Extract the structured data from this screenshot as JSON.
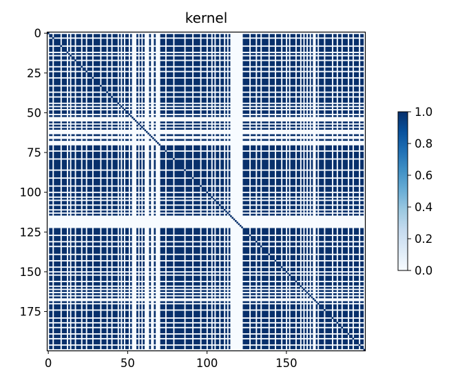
{
  "chart_data": {
    "type": "heatmap",
    "title": "kernel",
    "xlabel": "",
    "ylabel": "",
    "n_rows": 200,
    "n_cols": 200,
    "xlim": [
      0,
      199
    ],
    "ylim": [
      199,
      0
    ],
    "x_ticks": [
      0,
      50,
      100,
      150
    ],
    "y_ticks": [
      0,
      25,
      50,
      75,
      100,
      125,
      150,
      175
    ],
    "colormap": "Blues",
    "color_low": "#f7fbff",
    "color_high": "#08306b",
    "colorbar": {
      "range": [
        0,
        1
      ],
      "ticks": [
        "0.0",
        "0.2",
        "0.4",
        "0.6",
        "0.8",
        "1.0"
      ],
      "placement": "right"
    },
    "structure": "binary similarity kernel: k(i,j)=1 when samples i and j are both in the dominant group, 0 otherwise; diagonal k(i,i)=1",
    "sparse_indices": [
      0,
      3,
      8,
      12,
      14,
      17,
      21,
      24,
      28,
      33,
      37,
      40,
      44,
      46,
      48,
      51,
      53,
      54,
      55,
      57,
      59,
      61,
      62,
      63,
      65,
      66,
      68,
      69,
      70,
      74,
      79,
      86,
      91,
      96,
      100,
      103,
      105,
      108,
      111,
      113,
      115,
      116,
      117,
      118,
      119,
      120,
      121,
      122,
      127,
      131,
      134,
      139,
      143,
      147,
      150,
      152,
      156,
      159,
      161,
      163,
      165,
      167,
      168,
      170,
      174,
      179,
      182,
      185,
      189,
      192,
      196,
      199
    ]
  }
}
